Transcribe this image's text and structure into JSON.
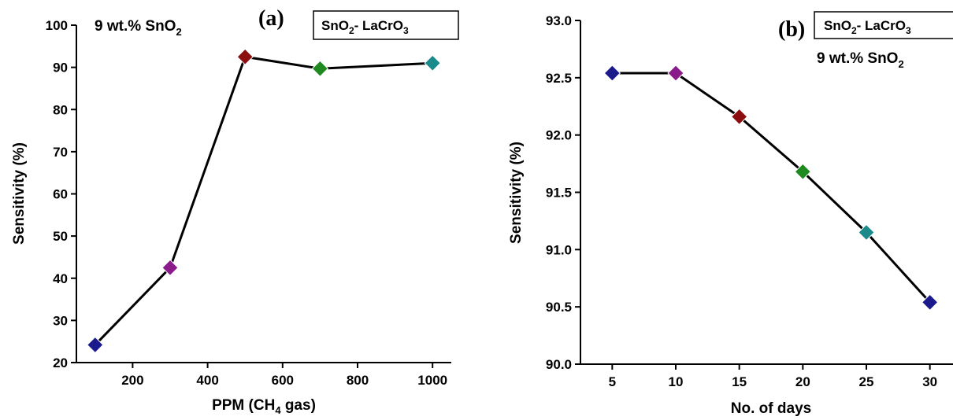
{
  "chart_data": [
    {
      "type": "line",
      "panel_label": "(a)",
      "xlabel": {
        "pre": "PPM (CH",
        "sub": "4",
        "post": " gas)"
      },
      "ylabel": "Sensitivity (%)",
      "xlim": [
        50,
        1050
      ],
      "ylim": [
        20,
        100
      ],
      "xticks": [
        200,
        400,
        600,
        800,
        1000
      ],
      "yticks": [
        20,
        30,
        40,
        50,
        60,
        70,
        80,
        90,
        100
      ],
      "annotation": {
        "pre": "9 wt.% SnO",
        "sub": "2"
      },
      "legend": {
        "pre": "SnO",
        "sub1": "2",
        "mid": "- LaCrO",
        "sub2": "3"
      },
      "points": [
        {
          "x": 100,
          "y": 24.2,
          "color": "#1a1a8c"
        },
        {
          "x": 300,
          "y": 42.5,
          "color": "#8b1a8b"
        },
        {
          "x": 500,
          "y": 92.5,
          "color": "#8b0f0f"
        },
        {
          "x": 700,
          "y": 89.7,
          "color": "#1f8a1f"
        },
        {
          "x": 1000,
          "y": 91.0,
          "color": "#1a8a8a"
        }
      ]
    },
    {
      "type": "line",
      "panel_label": "(b)",
      "xlabel": {
        "pre": "No. of days",
        "sub": "",
        "post": ""
      },
      "ylabel": "Sensitivity (%)",
      "xlim": [
        2.5,
        32.5
      ],
      "ylim": [
        90.0,
        93.0
      ],
      "xticks": [
        5,
        10,
        15,
        20,
        25,
        30
      ],
      "yticks": [
        "90.0",
        "90.5",
        "91.0",
        "91.5",
        "92.0",
        "92.5",
        "93.0"
      ],
      "annotation": {
        "pre": "9 wt.% SnO",
        "sub": "2"
      },
      "legend": {
        "pre": "SnO",
        "sub1": "2",
        "mid": "- LaCrO",
        "sub2": "3"
      },
      "points": [
        {
          "x": 5,
          "y": 92.54,
          "color": "#1a1a8c"
        },
        {
          "x": 10,
          "y": 92.54,
          "color": "#8b1a8b"
        },
        {
          "x": 15,
          "y": 92.16,
          "color": "#8b0f0f"
        },
        {
          "x": 20,
          "y": 91.68,
          "color": "#1f8a1f"
        },
        {
          "x": 25,
          "y": 91.15,
          "color": "#1a8a8a"
        },
        {
          "x": 30,
          "y": 90.54,
          "color": "#1a1a8c"
        }
      ]
    }
  ]
}
